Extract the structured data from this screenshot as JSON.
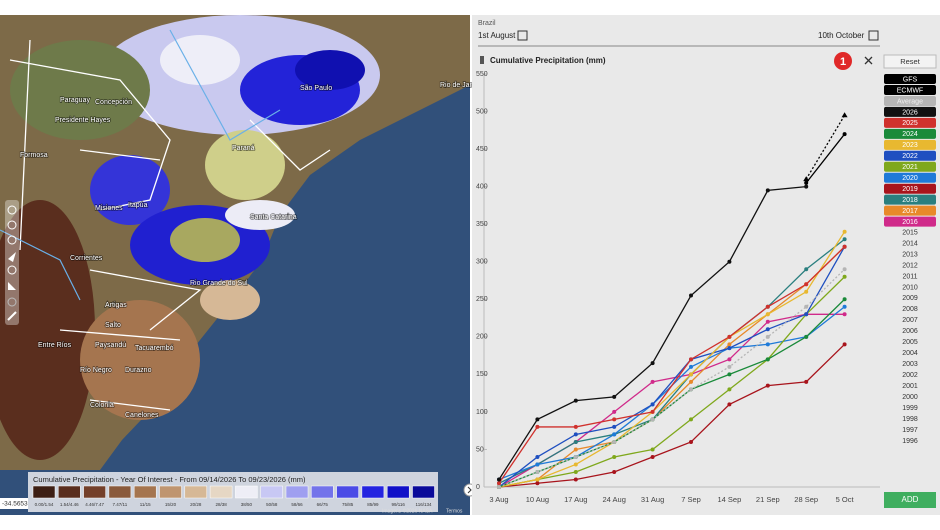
{
  "header": {
    "region": "Brazil",
    "start": "1st August",
    "end": "10th October"
  },
  "buttons": {
    "reset": "Reset",
    "add": "ADD",
    "badge": "1"
  },
  "map": {
    "labels": [
      "Paraguay",
      "Presidente Hayes",
      "Concepción",
      "Formosa",
      "São Paulo",
      "Rio de Janeiro",
      "Paraná",
      "Santa Catarina",
      "Itapúa",
      "Misiones",
      "Corrientes",
      "Rio Grande do Sul",
      "Artigas",
      "Salto",
      "Entre Ríos",
      "Paysandú",
      "Tacuarembó",
      "Durazno",
      "Río Negro",
      "Colonia",
      "Canelones"
    ],
    "coordinate": "-34.5653",
    "attribution": "Imagens ©2026 NASA",
    "terms": "Termos",
    "legend": {
      "title": "Cumulative Precipitation - Year Of Interest - From 09/14/2026 To 09/23/2026 (mm)",
      "bins": [
        "0.00/1.54",
        "1.54/4.46",
        "4.46/7.47",
        "7.47/11",
        "11/15",
        "15/20",
        "20/28",
        "28/38",
        "38/50",
        "50/58",
        "58/66",
        "66/75",
        "75/85",
        "85/99",
        "99/116",
        "116/134"
      ],
      "colors": [
        "#3d1f14",
        "#5a2e1e",
        "#74402a",
        "#8a5a3c",
        "#a5754f",
        "#bf9570",
        "#d6b896",
        "#e6d7c4",
        "#eeeef6",
        "#c8c8f4",
        "#9f9ff0",
        "#7373ea",
        "#4b4be6",
        "#2424e0",
        "#1010c8",
        "#0a0a9a"
      ]
    }
  },
  "chart_data": {
    "type": "line",
    "title": "Cumulative Precipitation (mm)",
    "categories": [
      "3 Aug",
      "10 Aug",
      "17 Aug",
      "24 Aug",
      "31 Aug",
      "7 Sep",
      "14 Sep",
      "21 Sep",
      "28 Sep",
      "5 Oct"
    ],
    "ylim": [
      0,
      550
    ],
    "yticks": [
      0,
      50,
      100,
      150,
      200,
      250,
      300,
      350,
      400,
      450,
      500,
      550
    ],
    "series": [
      {
        "name": "GFS",
        "color": "#000000",
        "dash": true,
        "values": [
          null,
          null,
          null,
          null,
          null,
          null,
          null,
          null,
          410,
          495
        ]
      },
      {
        "name": "ECMWF",
        "color": "#000000",
        "values": [
          null,
          null,
          null,
          null,
          null,
          null,
          null,
          null,
          405,
          470
        ]
      },
      {
        "name": "Average",
        "color": "#b5b5b5",
        "dash": true,
        "values": [
          0,
          20,
          40,
          60,
          90,
          130,
          160,
          200,
          240,
          290
        ]
      },
      {
        "name": "2026",
        "color": "#111111",
        "values": [
          10,
          90,
          115,
          120,
          165,
          255,
          300,
          395,
          400,
          null
        ]
      },
      {
        "name": "2025",
        "color": "#d0312d",
        "values": [
          5,
          80,
          80,
          90,
          100,
          170,
          200,
          240,
          270,
          320
        ]
      },
      {
        "name": "2024",
        "color": "#1a8a3a",
        "values": [
          0,
          20,
          40,
          60,
          90,
          130,
          150,
          170,
          200,
          250
        ]
      },
      {
        "name": "2023",
        "color": "#e8b830",
        "values": [
          0,
          10,
          30,
          60,
          100,
          150,
          200,
          230,
          260,
          340
        ]
      },
      {
        "name": "2022",
        "color": "#1f4fc0",
        "values": [
          0,
          40,
          70,
          80,
          110,
          170,
          185,
          210,
          230,
          320
        ]
      },
      {
        "name": "2021",
        "color": "#7fa81c",
        "values": [
          0,
          10,
          20,
          40,
          50,
          90,
          130,
          170,
          230,
          280
        ]
      },
      {
        "name": "2020",
        "color": "#1f7ad8",
        "values": [
          10,
          30,
          40,
          70,
          110,
          160,
          185,
          190,
          200,
          240
        ]
      },
      {
        "name": "2019",
        "color": "#a8141c",
        "values": [
          0,
          5,
          10,
          20,
          40,
          60,
          110,
          135,
          140,
          190
        ]
      },
      {
        "name": "2018",
        "color": "#2a7f7f",
        "values": [
          5,
          30,
          60,
          70,
          90,
          150,
          200,
          240,
          290,
          330
        ]
      },
      {
        "name": "2017",
        "color": "#e8892a",
        "values": [
          0,
          10,
          50,
          60,
          90,
          140,
          190,
          230,
          270,
          320
        ]
      },
      {
        "name": "2016",
        "color": "#d02a8a",
        "values": [
          0,
          30,
          60,
          100,
          140,
          150,
          170,
          220,
          230,
          230
        ]
      }
    ],
    "other_years": [
      "2015",
      "2014",
      "2013",
      "2012",
      "2011",
      "2010",
      "2009",
      "2008",
      "2007",
      "2006",
      "2005",
      "2004",
      "2003",
      "2002",
      "2001",
      "2000",
      "1999",
      "1998",
      "1997",
      "1996"
    ]
  }
}
